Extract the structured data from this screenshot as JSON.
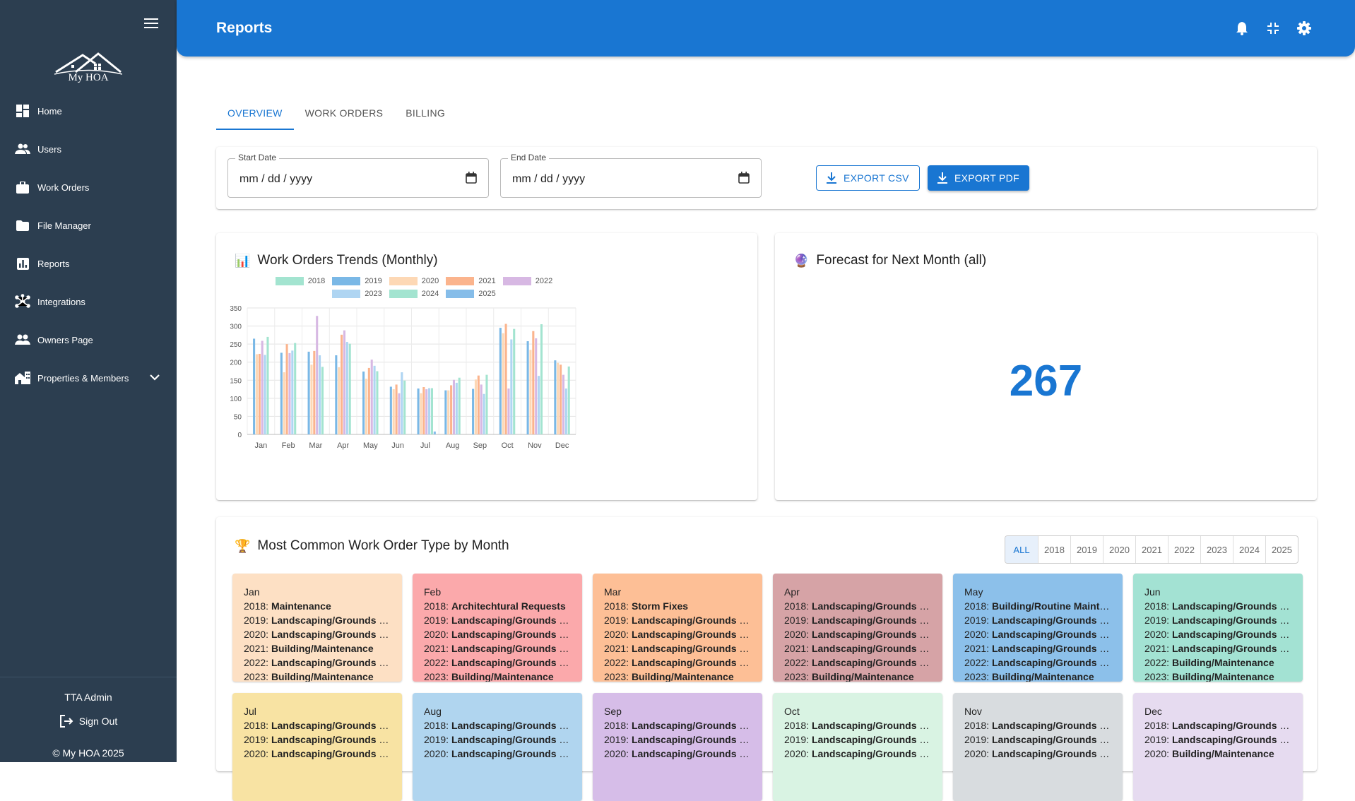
{
  "sidebar": {
    "logo_text": "My HOA",
    "items": [
      {
        "label": "Home"
      },
      {
        "label": "Users"
      },
      {
        "label": "Work Orders"
      },
      {
        "label": "File Manager"
      },
      {
        "label": "Reports"
      },
      {
        "label": "Integrations"
      },
      {
        "label": "Owners Page"
      },
      {
        "label": "Properties & Members"
      }
    ],
    "user_name": "TTA Admin",
    "signout_label": "Sign Out",
    "copyright": "© My HOA 2025"
  },
  "header": {
    "title": "Reports"
  },
  "tabs": [
    {
      "label": "OVERVIEW"
    },
    {
      "label": "WORK ORDERS"
    },
    {
      "label": "BILLING"
    }
  ],
  "filters": {
    "start_label": "Start Date",
    "start_value": "mm / dd / yyyy",
    "end_label": "End Date",
    "end_value": "mm / dd / yyyy",
    "export_csv": "EXPORT CSV",
    "export_pdf": "EXPORT PDF"
  },
  "trends": {
    "title": "Work Orders Trends (Monthly)",
    "emoji": "📊"
  },
  "forecast": {
    "title": "Forecast for Next Month (all)",
    "emoji": "🔮",
    "value": "267"
  },
  "types": {
    "title": "Most Common Work Order Type by Month",
    "emoji": "🏆",
    "years": [
      "ALL",
      "2018",
      "2019",
      "2020",
      "2021",
      "2022",
      "2023",
      "2024",
      "2025"
    ],
    "months": [
      {
        "name": "Jan",
        "color": "#fde0c4",
        "rows": [
          {
            "y": "2018:",
            "t": "Maintenance"
          },
          {
            "y": "2019:",
            "t": "Landscaping/Grounds Maintenance"
          },
          {
            "y": "2020:",
            "t": "Landscaping/Grounds Maintenance"
          },
          {
            "y": "2021:",
            "t": "Building/Maintenance"
          },
          {
            "y": "2022:",
            "t": "Landscaping/Grounds Maintenance"
          },
          {
            "y": "2023:",
            "t": "Building/Maintenance"
          }
        ]
      },
      {
        "name": "Feb",
        "color": "#fba9ab",
        "rows": [
          {
            "y": "2018:",
            "t": "Architechtural Requests"
          },
          {
            "y": "2019:",
            "t": "Landscaping/Grounds Maintenance"
          },
          {
            "y": "2020:",
            "t": "Landscaping/Grounds Maintenance"
          },
          {
            "y": "2021:",
            "t": "Landscaping/Grounds Maintenance"
          },
          {
            "y": "2022:",
            "t": "Landscaping/Grounds Maintenance"
          },
          {
            "y": "2023:",
            "t": "Building/Maintenance"
          }
        ]
      },
      {
        "name": "Mar",
        "color": "#fdbf96",
        "rows": [
          {
            "y": "2018:",
            "t": "Storm Fixes"
          },
          {
            "y": "2019:",
            "t": "Landscaping/Grounds Maintenance"
          },
          {
            "y": "2020:",
            "t": "Landscaping/Grounds Maintenance"
          },
          {
            "y": "2021:",
            "t": "Landscaping/Grounds Maintenance"
          },
          {
            "y": "2022:",
            "t": "Landscaping/Grounds Maintenance"
          },
          {
            "y": "2023:",
            "t": "Building/Maintenance"
          }
        ]
      },
      {
        "name": "Apr",
        "color": "#d6a3a6",
        "rows": [
          {
            "y": "2018:",
            "t": "Landscaping/Grounds Maintenance"
          },
          {
            "y": "2019:",
            "t": "Landscaping/Grounds Maintenance"
          },
          {
            "y": "2020:",
            "t": "Landscaping/Grounds Maintenance"
          },
          {
            "y": "2021:",
            "t": "Landscaping/Grounds Maintenance"
          },
          {
            "y": "2022:",
            "t": "Landscaping/Grounds Maintenance"
          },
          {
            "y": "2023:",
            "t": "Building/Maintenance"
          }
        ]
      },
      {
        "name": "May",
        "color": "#8cc0ea",
        "rows": [
          {
            "y": "2018:",
            "t": "Building/Routine Maintenance"
          },
          {
            "y": "2019:",
            "t": "Landscaping/Grounds Maintenance"
          },
          {
            "y": "2020:",
            "t": "Landscaping/Grounds Maintenance"
          },
          {
            "y": "2021:",
            "t": "Landscaping/Grounds Maintenance"
          },
          {
            "y": "2022:",
            "t": "Landscaping/Grounds Maintenance"
          },
          {
            "y": "2023:",
            "t": "Building/Maintenance"
          }
        ]
      },
      {
        "name": "Jun",
        "color": "#a3e2d3",
        "rows": [
          {
            "y": "2018:",
            "t": "Landscaping/Grounds Maintenance"
          },
          {
            "y": "2019:",
            "t": "Landscaping/Grounds Maintenance"
          },
          {
            "y": "2020:",
            "t": "Landscaping/Grounds Maintenance"
          },
          {
            "y": "2021:",
            "t": "Landscaping/Grounds Maintenance"
          },
          {
            "y": "2022:",
            "t": "Building/Maintenance"
          },
          {
            "y": "2023:",
            "t": "Building/Maintenance"
          }
        ]
      },
      {
        "name": "Jul",
        "color": "#f8e3a3",
        "rows": [
          {
            "y": "2018:",
            "t": "Landscaping/Grounds Maintenance"
          },
          {
            "y": "2019:",
            "t": "Landscaping/Grounds Maintenance"
          },
          {
            "y": "2020:",
            "t": "Landscaping/Grounds Maintenance"
          }
        ]
      },
      {
        "name": "Aug",
        "color": "#b0d5ef",
        "rows": [
          {
            "y": "2018:",
            "t": "Landscaping/Grounds Maintenance"
          },
          {
            "y": "2019:",
            "t": "Landscaping/Grounds Maintenance"
          },
          {
            "y": "2020:",
            "t": "Landscaping/Grounds Maintenance"
          }
        ]
      },
      {
        "name": "Sep",
        "color": "#d6bde8",
        "rows": [
          {
            "y": "2018:",
            "t": "Landscaping/Grounds Maintenance"
          },
          {
            "y": "2019:",
            "t": "Landscaping/Grounds Maintenance"
          },
          {
            "y": "2020:",
            "t": "Landscaping/Grounds Maintenance"
          }
        ]
      },
      {
        "name": "Oct",
        "color": "#d9f3e3",
        "rows": [
          {
            "y": "2018:",
            "t": "Landscaping/Grounds Maintenance"
          },
          {
            "y": "2019:",
            "t": "Landscaping/Grounds Maintenance"
          },
          {
            "y": "2020:",
            "t": "Landscaping/Grounds Maintenance"
          }
        ]
      },
      {
        "name": "Nov",
        "color": "#d8dcdf",
        "rows": [
          {
            "y": "2018:",
            "t": "Landscaping/Grounds Maintenance"
          },
          {
            "y": "2019:",
            "t": "Landscaping/Grounds Maintenance"
          },
          {
            "y": "2020:",
            "t": "Landscaping/Grounds Maintenance"
          }
        ]
      },
      {
        "name": "Dec",
        "color": "#e6dbf0",
        "rows": [
          {
            "y": "2018:",
            "t": "Landscaping/Grounds Maintenance"
          },
          {
            "y": "2019:",
            "t": "Landscaping/Grounds Maintenance"
          },
          {
            "y": "2020:",
            "t": "Building/Maintenance"
          }
        ]
      }
    ]
  },
  "chart_data": {
    "type": "bar",
    "title": "Work Orders Trends (Monthly)",
    "xlabel": "",
    "ylabel": "",
    "ylim": [
      0,
      350
    ],
    "yticks": [
      0,
      50,
      100,
      150,
      200,
      250,
      300,
      350
    ],
    "grid": true,
    "legend": "top",
    "categories": [
      "Jan",
      "Feb",
      "Mar",
      "Apr",
      "May",
      "Jun",
      "Jul",
      "Aug",
      "Sep",
      "Oct",
      "Nov",
      "Dec"
    ],
    "series": [
      {
        "name": "2018",
        "color": "#a3e4d0",
        "values": [
          0,
          0,
          0,
          0,
          0,
          0,
          0,
          0,
          0,
          0,
          0,
          0
        ]
      },
      {
        "name": "2019",
        "color": "#7ab8e6",
        "values": [
          265,
          226,
          229,
          219,
          174,
          132,
          127,
          122,
          126,
          295,
          258,
          205
        ]
      },
      {
        "name": "2020",
        "color": "#fdd8b5",
        "values": [
          222,
          172,
          193,
          186,
          154,
          125,
          114,
          122,
          152,
          280,
          234,
          198
        ]
      },
      {
        "name": "2021",
        "color": "#fbb48d",
        "values": [
          223,
          250,
          231,
          276,
          184,
          138,
          131,
          136,
          163,
          306,
          286,
          193
        ]
      },
      {
        "name": "2022",
        "color": "#d7b8e3",
        "values": [
          259,
          225,
          328,
          288,
          207,
          114,
          125,
          151,
          138,
          127,
          266,
          165
        ]
      },
      {
        "name": "2023",
        "color": "#afd5f2",
        "values": [
          220,
          232,
          219,
          256,
          190,
          172,
          128,
          143,
          112,
          263,
          162,
          127
        ]
      },
      {
        "name": "2024",
        "color": "#a3e4d0",
        "values": [
          270,
          253,
          187,
          251,
          175,
          149,
          128,
          157,
          165,
          292,
          305,
          188
        ]
      },
      {
        "name": "2025",
        "color": "#86bde9",
        "values": [
          0,
          0,
          0,
          0,
          0,
          0,
          8,
          0,
          0,
          0,
          0,
          0
        ]
      }
    ]
  }
}
